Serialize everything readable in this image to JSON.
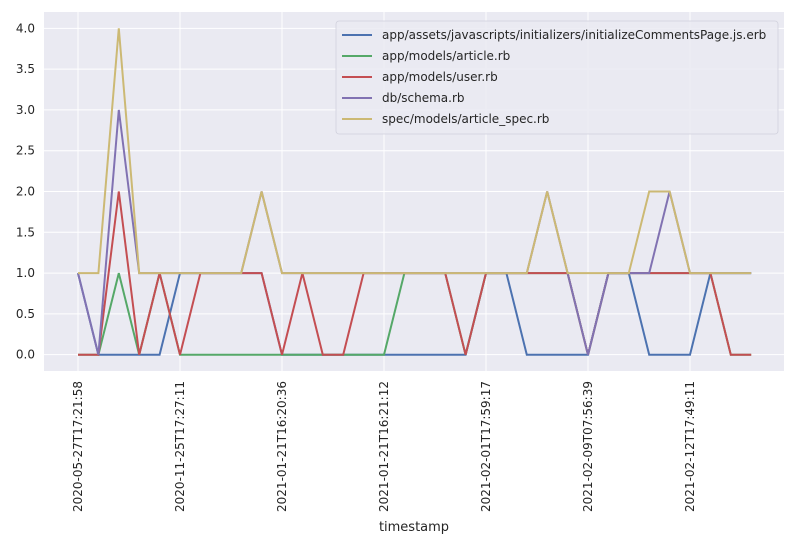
{
  "chart_data": {
    "type": "line",
    "xlabel": "timestamp",
    "ylabel": "",
    "ylim": [
      -0.2,
      4.2
    ],
    "yticks": [
      0.0,
      0.5,
      1.0,
      1.5,
      2.0,
      2.5,
      3.0,
      3.5,
      4.0
    ],
    "ytick_labels": [
      "0.0",
      "0.5",
      "1.0",
      "1.5",
      "2.0",
      "2.5",
      "3.0",
      "3.5",
      "4.0"
    ],
    "xtick_indices": [
      0,
      5,
      10,
      15,
      20,
      25,
      30
    ],
    "xtick_labels": [
      "2020-05-27T17:21:58",
      "2020-11-25T17:27:11",
      "2021-01-21T16:20:36",
      "2021-01-21T16:21:12",
      "2021-02-01T17:59:17",
      "2021-02-09T07:56:39",
      "2021-02-12T17:49:11"
    ],
    "n_points": 34,
    "grid": true,
    "legend_position": "top-right",
    "series": [
      {
        "name": "app/assets/javascripts/initializers/initializeCommentsPage.js.erb",
        "color": "#4c72b0",
        "values": [
          1,
          0,
          0,
          0,
          0,
          1,
          1,
          1,
          1,
          1,
          0,
          0,
          0,
          0,
          0,
          0,
          0,
          0,
          0,
          0,
          1,
          1,
          0,
          0,
          0,
          0,
          1,
          1,
          0,
          0,
          0,
          1,
          1,
          1
        ]
      },
      {
        "name": "app/models/article.rb",
        "color": "#55a868",
        "values": [
          0,
          0,
          1,
          0,
          1,
          0,
          0,
          0,
          0,
          0,
          0,
          0,
          0,
          0,
          0,
          0,
          1,
          1,
          1,
          0,
          1,
          1,
          1,
          1,
          1,
          0,
          1,
          1,
          1,
          1,
          1,
          1,
          0,
          0
        ]
      },
      {
        "name": "app/models/user.rb",
        "color": "#c44e52",
        "values": [
          0,
          0,
          2,
          0,
          1,
          0,
          1,
          1,
          1,
          1,
          0,
          1,
          0,
          0,
          1,
          1,
          1,
          1,
          1,
          0,
          1,
          1,
          1,
          1,
          1,
          0,
          1,
          1,
          1,
          1,
          1,
          1,
          0,
          0
        ]
      },
      {
        "name": "db/schema.rb",
        "color": "#8172b2",
        "values": [
          1,
          0,
          3,
          1,
          1,
          1,
          1,
          1,
          1,
          2,
          1,
          1,
          1,
          1,
          1,
          1,
          1,
          1,
          1,
          1,
          1,
          1,
          1,
          2,
          1,
          0,
          1,
          1,
          1,
          2,
          1,
          1,
          1,
          1
        ]
      },
      {
        "name": "spec/models/article_spec.rb",
        "color": "#ccb974",
        "values": [
          1,
          1,
          4,
          1,
          1,
          1,
          1,
          1,
          1,
          2,
          1,
          1,
          1,
          1,
          1,
          1,
          1,
          1,
          1,
          1,
          1,
          1,
          1,
          2,
          1,
          1,
          1,
          1,
          2,
          2,
          1,
          1,
          1,
          1
        ]
      }
    ]
  }
}
